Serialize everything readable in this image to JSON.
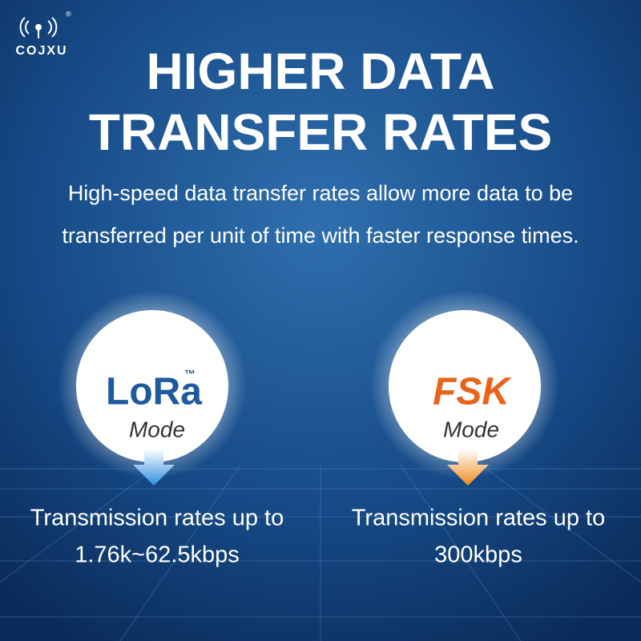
{
  "logo": {
    "brand": "COJXU",
    "mark": "®"
  },
  "header": {
    "title": [
      "HIGHER DATA",
      "TRANSFER RATES"
    ],
    "description": [
      "High-speed data transfer rates allow more data to be",
      "transferred per unit of time with faster response times."
    ]
  },
  "modes": [
    {
      "name": "LoRa",
      "trademark": "™",
      "label": "Mode",
      "rate": [
        "Transmission rates up to",
        "1.76k~62.5kbps"
      ]
    },
    {
      "name": "FSK",
      "label": "Mode",
      "rate": [
        "Transmission rates up to",
        "300kbps"
      ]
    }
  ]
}
